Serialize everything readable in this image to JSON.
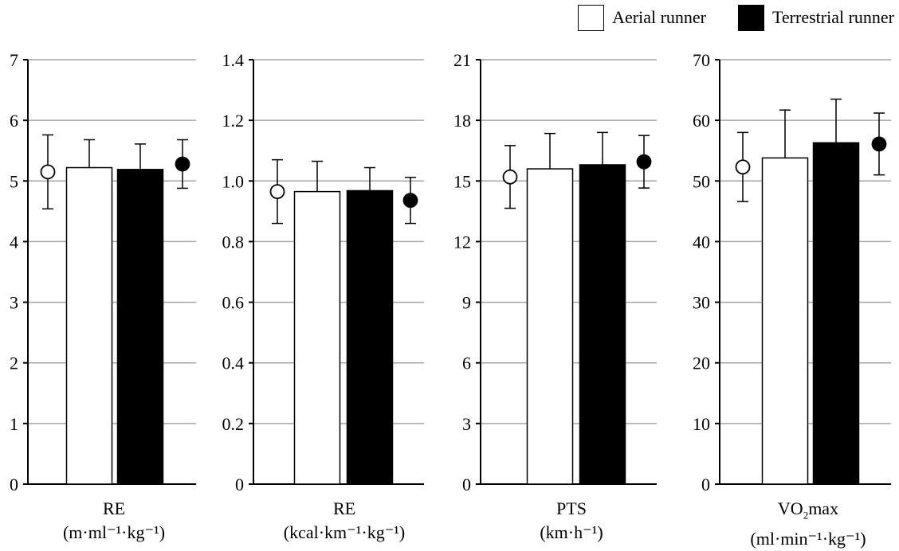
{
  "legend": {
    "aerial": {
      "label": "Aerial runner",
      "color": "#ffffff"
    },
    "terrestrial": {
      "label": "Terrestrial runner",
      "color": "#000000"
    }
  },
  "chart_data": [
    {
      "type": "bar",
      "title": "RE",
      "xlabel": "RE",
      "unit_label": "(m·ml⁻¹·kg⁻¹)",
      "ylim": [
        0,
        7
      ],
      "yticks": [
        0,
        1,
        2,
        3,
        4,
        5,
        6,
        7
      ],
      "ytick_labels": [
        "0",
        "1",
        "2",
        "3",
        "4",
        "5",
        "6",
        "7"
      ],
      "series": [
        {
          "name": "Aerial runner (group 1)",
          "kind": "point",
          "fill": "#ffffff",
          "value": 5.15,
          "error": 0.61
        },
        {
          "name": "Aerial runner (group 2)",
          "kind": "bar",
          "fill": "#ffffff",
          "value": 5.22,
          "error": 0.46
        },
        {
          "name": "Terrestrial runner (group 2)",
          "kind": "bar",
          "fill": "#000000",
          "value": 5.19,
          "error": 0.42
        },
        {
          "name": "Terrestrial runner (group 1)",
          "kind": "point",
          "fill": "#000000",
          "value": 5.28,
          "error": 0.4
        }
      ]
    },
    {
      "type": "bar",
      "title": "RE",
      "xlabel": "RE",
      "unit_label": "(kcal·km⁻¹·kg⁻¹)",
      "ylim": [
        0,
        1.4
      ],
      "yticks": [
        0,
        0.2,
        0.4,
        0.6,
        0.8,
        1.0,
        1.2,
        1.4
      ],
      "ytick_labels": [
        "0",
        "0.2",
        "0.4",
        "0.6",
        "0.8",
        "1.0",
        "1.2",
        "1.4"
      ],
      "series": [
        {
          "name": "Aerial runner (group 1)",
          "kind": "point",
          "fill": "#ffffff",
          "value": 0.965,
          "error": 0.105
        },
        {
          "name": "Aerial runner (group 2)",
          "kind": "bar",
          "fill": "#ffffff",
          "value": 0.965,
          "error": 0.1
        },
        {
          "name": "Terrestrial runner (group 2)",
          "kind": "bar",
          "fill": "#000000",
          "value": 0.968,
          "error": 0.076
        },
        {
          "name": "Terrestrial runner (group 1)",
          "kind": "point",
          "fill": "#000000",
          "value": 0.936,
          "error": 0.076
        }
      ]
    },
    {
      "type": "bar",
      "title": "PTS",
      "xlabel": "PTS",
      "unit_label": "(km·h⁻¹)",
      "ylim": [
        0,
        21
      ],
      "yticks": [
        0,
        3,
        6,
        9,
        12,
        15,
        18,
        21
      ],
      "ytick_labels": [
        "0",
        "3",
        "6",
        "9",
        "12",
        "15",
        "18",
        "21"
      ],
      "series": [
        {
          "name": "Aerial runner (group 1)",
          "kind": "point",
          "fill": "#ffffff",
          "value": 15.2,
          "error": 1.55
        },
        {
          "name": "Aerial runner (group 2)",
          "kind": "bar",
          "fill": "#ffffff",
          "value": 15.6,
          "error": 1.75
        },
        {
          "name": "Terrestrial runner (group 2)",
          "kind": "bar",
          "fill": "#000000",
          "value": 15.8,
          "error": 1.6
        },
        {
          "name": "Terrestrial runner (group 1)",
          "kind": "point",
          "fill": "#000000",
          "value": 15.95,
          "error": 1.3
        }
      ]
    },
    {
      "type": "bar",
      "title": "VO2max",
      "xlabel_main": "VO",
      "xlabel_sub": "2",
      "xlabel_tail": "max",
      "unit_label": "(ml·min⁻¹·kg⁻¹)",
      "ylim": [
        0,
        70
      ],
      "yticks": [
        0,
        10,
        20,
        30,
        40,
        50,
        60,
        70
      ],
      "ytick_labels": [
        "0",
        "10",
        "20",
        "30",
        "40",
        "50",
        "60",
        "70"
      ],
      "series": [
        {
          "name": "Aerial runner (group 1)",
          "kind": "point",
          "fill": "#ffffff",
          "value": 52.3,
          "error": 5.7
        },
        {
          "name": "Aerial runner (group 2)",
          "kind": "bar",
          "fill": "#ffffff",
          "value": 53.8,
          "error": 7.9
        },
        {
          "name": "Terrestrial runner (group 2)",
          "kind": "bar",
          "fill": "#000000",
          "value": 56.3,
          "error": 7.2
        },
        {
          "name": "Terrestrial runner (group 1)",
          "kind": "point",
          "fill": "#000000",
          "value": 56.1,
          "error": 5.1
        }
      ]
    }
  ]
}
